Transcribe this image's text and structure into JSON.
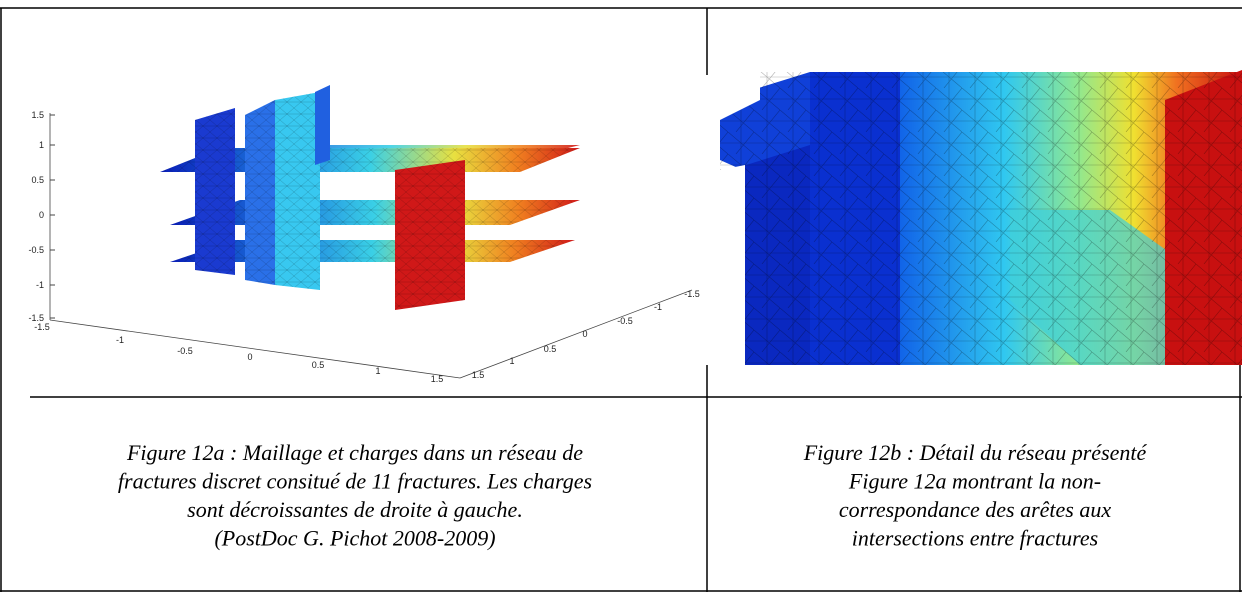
{
  "figures": [
    {
      "axes": {
        "z_ticks": [
          "1.5",
          "1",
          "0.5",
          "0",
          "-0.5",
          "-1",
          "-1.5"
        ],
        "x_ticks": [
          "-1.5",
          "-1",
          "-0.5",
          "0",
          "0.5",
          "1",
          "1.5"
        ],
        "y_ticks": [
          "1.5",
          "1",
          "0.5",
          "0",
          "-0.5",
          "-1",
          "-1.5"
        ]
      },
      "caption": [
        "Figure 12a : Maillage et charges dans un réseau de",
        "fractures discret consitué de 11 fractures. Les charges",
        "sont décroissantes de droite à gauche.",
        "(PostDoc G. Pichot 2008-2009)"
      ]
    },
    {
      "caption": [
        "Figure 12b : Détail du réseau présenté",
        "Figure 12a montrant la non-",
        "correspondance des arêtes aux",
        "intersections entre fractures"
      ]
    }
  ]
}
